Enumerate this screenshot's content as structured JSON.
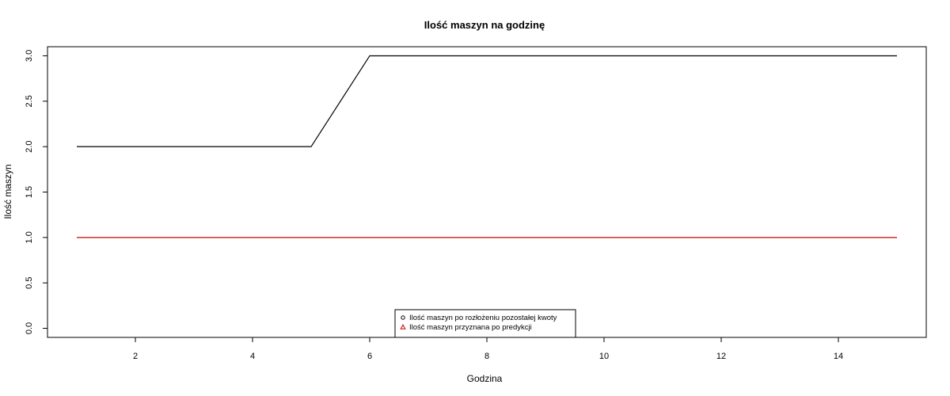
{
  "chart_data": {
    "type": "line",
    "title": "Ilość maszyn na godzinę",
    "xlabel": "Godzina",
    "ylabel": "Ilość maszyn",
    "xlim": [
      0.5,
      15.5
    ],
    "ylim": [
      -0.1,
      3.1
    ],
    "xticks": [
      2,
      4,
      6,
      8,
      10,
      12,
      14
    ],
    "yticks": [
      0.0,
      0.5,
      1.0,
      1.5,
      2.0,
      2.5,
      3.0
    ],
    "ytick_labels": [
      "0.0",
      "0.5",
      "1.0",
      "1.5",
      "2.0",
      "2.5",
      "3.0"
    ],
    "grid": false,
    "legend_position": "bottom-center",
    "x": [
      1,
      2,
      3,
      4,
      5,
      6,
      7,
      8,
      9,
      10,
      11,
      12,
      13,
      14,
      15
    ],
    "series": [
      {
        "name": "Ilość maszyn po rozłożeniu pozostałej kwoty",
        "color": "#000000",
        "marker": "circle",
        "values": [
          2,
          2,
          2,
          2,
          2,
          3,
          3,
          3,
          3,
          3,
          3,
          3,
          3,
          3,
          3
        ]
      },
      {
        "name": "Ilość maszyn przyznana po predykcji",
        "color": "#cc0000",
        "marker": "triangle",
        "values": [
          1,
          1,
          1,
          1,
          1,
          1,
          1,
          1,
          1,
          1,
          1,
          1,
          1,
          1,
          1
        ]
      }
    ]
  }
}
